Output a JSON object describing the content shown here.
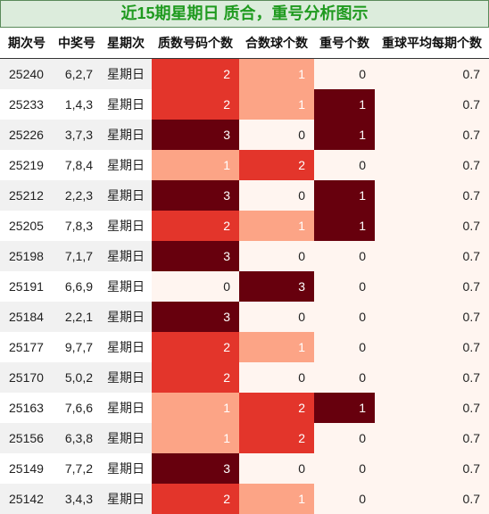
{
  "title": "近15期星期日 质合，重号分析图示",
  "colors": {
    "level0": "#fff5f0",
    "level1": "#fca486",
    "level2": "#e3352b",
    "level3": "#67000d",
    "title_bg": "#dcecdc",
    "title_text": "#1f9a1f"
  },
  "chart_data": {
    "type": "table",
    "columns": [
      "期次号",
      "中奖号",
      "星期次",
      "质数号码个数",
      "合数球个数",
      "重号个数",
      "重球平均每期个数"
    ],
    "rows": [
      [
        "25240",
        "6,2,7",
        "星期日",
        2,
        1,
        0,
        0.7
      ],
      [
        "25233",
        "1,4,3",
        "星期日",
        2,
        1,
        1,
        0.7
      ],
      [
        "25226",
        "3,7,3",
        "星期日",
        3,
        0,
        1,
        0.7
      ],
      [
        "25219",
        "7,8,4",
        "星期日",
        1,
        2,
        0,
        0.7
      ],
      [
        "25212",
        "2,2,3",
        "星期日",
        3,
        0,
        1,
        0.7
      ],
      [
        "25205",
        "7,8,3",
        "星期日",
        2,
        1,
        1,
        0.7
      ],
      [
        "25198",
        "7,1,7",
        "星期日",
        3,
        0,
        0,
        0.7
      ],
      [
        "25191",
        "6,6,9",
        "星期日",
        0,
        3,
        0,
        0.7
      ],
      [
        "25184",
        "2,2,1",
        "星期日",
        3,
        0,
        0,
        0.7
      ],
      [
        "25177",
        "9,7,7",
        "星期日",
        2,
        1,
        0,
        0.7
      ],
      [
        "25170",
        "5,0,2",
        "星期日",
        2,
        0,
        0,
        0.7
      ],
      [
        "25163",
        "7,6,6",
        "星期日",
        1,
        2,
        1,
        0.7
      ],
      [
        "25156",
        "6,3,8",
        "星期日",
        1,
        2,
        0,
        0.7
      ],
      [
        "25149",
        "7,7,2",
        "星期日",
        3,
        0,
        0,
        0.7
      ],
      [
        "25142",
        "3,4,3",
        "星期日",
        2,
        1,
        0,
        0.7
      ]
    ]
  }
}
